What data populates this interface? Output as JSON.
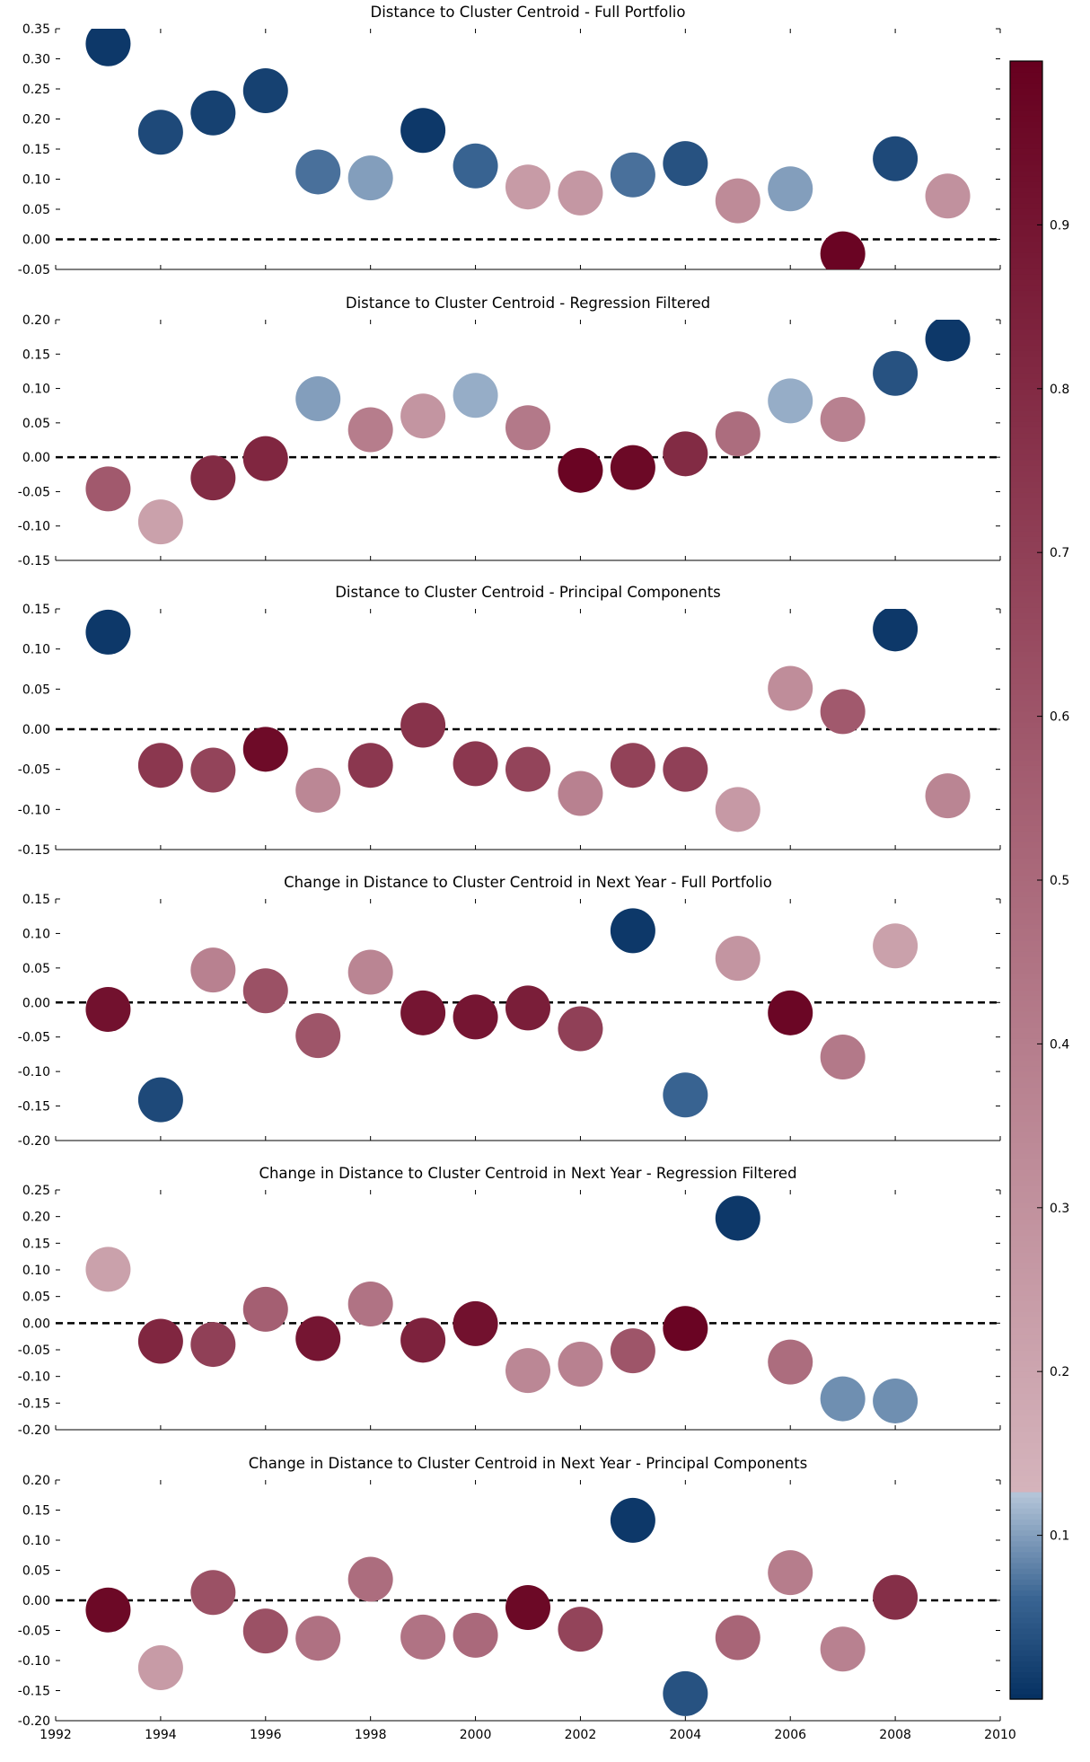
{
  "chart_data": [
    {
      "type": "scatter",
      "title": "Distance to Cluster Centroid - Full Portfolio",
      "ylim": [
        -0.05,
        0.35
      ],
      "yticks": [
        "0.35",
        "0.30",
        "0.25",
        "0.20",
        "0.15",
        "0.10",
        "0.05",
        "0.00",
        "-0.05"
      ],
      "reference_line": 0.0,
      "x": [
        1993,
        1994,
        1995,
        1996,
        1997,
        1998,
        1999,
        2000,
        2001,
        2002,
        2003,
        2004,
        2005,
        2006,
        2007,
        2008,
        2009
      ],
      "y": [
        0.325,
        0.178,
        0.21,
        0.247,
        0.112,
        0.102,
        0.181,
        0.122,
        0.087,
        0.077,
        0.107,
        0.126,
        0.064,
        0.084,
        -0.024,
        0.134,
        0.072
      ],
      "color_value": [
        0.01,
        0.03,
        0.02,
        0.02,
        0.07,
        0.1,
        0.01,
        0.06,
        0.25,
        0.27,
        0.07,
        0.04,
        0.33,
        0.1,
        0.98,
        0.03,
        0.3
      ]
    },
    {
      "type": "scatter",
      "title": "Distance to Cluster Centroid - Regression Filtered",
      "ylim": [
        -0.15,
        0.2
      ],
      "yticks": [
        "0.20",
        "0.15",
        "0.10",
        "0.05",
        "0.00",
        "-0.05",
        "-0.10",
        "-0.15"
      ],
      "reference_line": 0.0,
      "x": [
        1993,
        1994,
        1995,
        1996,
        1997,
        1998,
        1999,
        2000,
        2001,
        2002,
        2003,
        2004,
        2005,
        2006,
        2007,
        2008,
        2009
      ],
      "y": [
        -0.046,
        -0.094,
        -0.03,
        -0.002,
        0.085,
        0.04,
        0.06,
        0.09,
        0.043,
        -0.019,
        -0.015,
        0.005,
        0.034,
        0.082,
        0.055,
        0.122,
        0.172
      ],
      "color_value": [
        0.58,
        0.22,
        0.8,
        0.82,
        0.1,
        0.4,
        0.28,
        0.11,
        0.42,
        0.98,
        0.96,
        0.8,
        0.48,
        0.11,
        0.38,
        0.04,
        0.01
      ]
    },
    {
      "type": "scatter",
      "title": "Distance to Cluster Centroid - Principal Components",
      "ylim": [
        -0.15,
        0.15
      ],
      "yticks": [
        "0.15",
        "0.10",
        "0.05",
        "0.00",
        "-0.05",
        "-0.10",
        "-0.15"
      ],
      "reference_line": 0.0,
      "x": [
        1993,
        1994,
        1995,
        1996,
        1997,
        1998,
        1999,
        2000,
        2001,
        2002,
        2003,
        2004,
        2005,
        2006,
        2007,
        2008,
        2009
      ],
      "y": [
        0.121,
        -0.045,
        -0.051,
        -0.025,
        -0.076,
        -0.045,
        0.005,
        -0.043,
        -0.05,
        -0.08,
        -0.045,
        -0.05,
        -0.1,
        0.051,
        0.022,
        0.125,
        -0.083
      ],
      "color_value": [
        0.01,
        0.74,
        0.68,
        0.95,
        0.35,
        0.74,
        0.76,
        0.74,
        0.68,
        0.38,
        0.69,
        0.7,
        0.26,
        0.32,
        0.58,
        0.01,
        0.36
      ]
    },
    {
      "type": "scatter",
      "title": "Change in Distance to Cluster Centroid in Next Year - Full Portfolio",
      "ylim": [
        -0.2,
        0.15
      ],
      "yticks": [
        "0.15",
        "0.10",
        "0.05",
        "0.00",
        "-0.05",
        "-0.10",
        "-0.15",
        "-0.20"
      ],
      "reference_line": 0.0,
      "x": [
        1993,
        1994,
        1995,
        1996,
        1997,
        1998,
        1999,
        2000,
        2001,
        2002,
        2003,
        2004,
        2005,
        2006,
        2007,
        2008
      ],
      "y": [
        -0.01,
        -0.141,
        0.047,
        0.017,
        -0.048,
        0.044,
        -0.015,
        -0.021,
        -0.008,
        -0.038,
        0.104,
        -0.134,
        0.064,
        -0.015,
        -0.079,
        0.082
      ],
      "color_value": [
        0.92,
        0.03,
        0.38,
        0.62,
        0.6,
        0.36,
        0.9,
        0.9,
        0.86,
        0.7,
        0.01,
        0.06,
        0.28,
        0.97,
        0.42,
        0.22
      ]
    },
    {
      "type": "scatter",
      "title": "Change in Distance to Cluster Centroid in Next Year - Regression Filtered",
      "ylim": [
        -0.2,
        0.25
      ],
      "yticks": [
        "0.25",
        "0.20",
        "0.15",
        "0.10",
        "0.05",
        "0.00",
        "-0.05",
        "-0.10",
        "-0.15",
        "-0.20"
      ],
      "reference_line": 0.0,
      "x": [
        1993,
        1994,
        1995,
        1996,
        1997,
        1998,
        1999,
        2000,
        2001,
        2002,
        2003,
        2004,
        2005,
        2006,
        2007,
        2008
      ],
      "y": [
        0.101,
        -0.034,
        -0.04,
        0.026,
        -0.029,
        0.036,
        -0.032,
        -0.001,
        -0.089,
        -0.077,
        -0.052,
        -0.01,
        0.197,
        -0.073,
        -0.142,
        -0.146
      ],
      "color_value": [
        0.22,
        0.82,
        0.7,
        0.55,
        0.9,
        0.45,
        0.84,
        0.92,
        0.35,
        0.38,
        0.6,
        0.98,
        0.01,
        0.48,
        0.09,
        0.09
      ]
    },
    {
      "type": "scatter",
      "title": "Change in Distance to Cluster Centroid in Next Year - Principal Components",
      "ylim": [
        -0.2,
        0.2
      ],
      "yticks": [
        "0.20",
        "0.15",
        "0.10",
        "0.05",
        "0.00",
        "-0.05",
        "-0.10",
        "-0.15",
        "-0.20"
      ],
      "reference_line": 0.0,
      "x": [
        1993,
        1994,
        1995,
        1996,
        1997,
        1998,
        1999,
        2000,
        2001,
        2002,
        2003,
        2004,
        2005,
        2006,
        2007,
        2008
      ],
      "y": [
        -0.016,
        -0.112,
        0.013,
        -0.051,
        -0.063,
        0.035,
        -0.061,
        -0.058,
        -0.012,
        -0.048,
        0.133,
        -0.155,
        -0.062,
        0.046,
        -0.081,
        0.005
      ],
      "color_value": [
        0.96,
        0.25,
        0.62,
        0.62,
        0.46,
        0.48,
        0.45,
        0.5,
        0.96,
        0.68,
        0.01,
        0.04,
        0.52,
        0.4,
        0.38,
        0.78
      ]
    }
  ],
  "x_axis": {
    "xlim": [
      1992,
      2010
    ],
    "ticks": [
      "1992",
      "1994",
      "1996",
      "1998",
      "2000",
      "2002",
      "2004",
      "2006",
      "2008",
      "2010"
    ]
  },
  "colorbar": {
    "range": [
      0,
      1
    ],
    "ticks": [
      "0.9",
      "0.8",
      "0.7",
      "0.6",
      "0.5",
      "0.4",
      "0.3",
      "0.2",
      "0.1"
    ],
    "tick_values": [
      0.9,
      0.8,
      0.7,
      0.6,
      0.5,
      0.4,
      0.3,
      0.2,
      0.1
    ],
    "colormap": [
      "#053061",
      "#2166ac",
      "#92c5de",
      "#d1e5f0",
      "#fddbc7",
      "#d6a0ad",
      "#a86073",
      "#67001f"
    ]
  }
}
